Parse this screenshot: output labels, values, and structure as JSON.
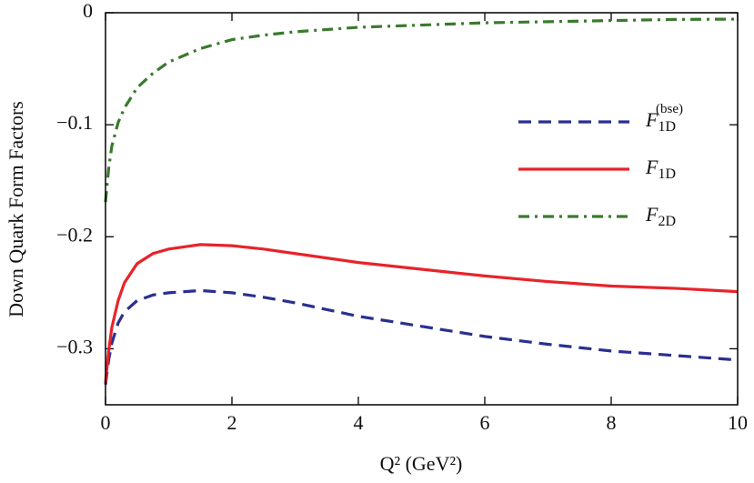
{
  "chart_data": {
    "type": "line",
    "xlabel": "Q² (GeV²)",
    "ylabel": "Down Quark Form Factors",
    "x": [
      0,
      0.05,
      0.1,
      0.2,
      0.3,
      0.5,
      0.75,
      1,
      1.5,
      2,
      2.5,
      3,
      4,
      5,
      6,
      7,
      8,
      9,
      10
    ],
    "series": [
      {
        "name": "F1D(bse)",
        "color": "#2b2f8f",
        "linestyle": "dashed",
        "values": [
          -0.332,
          -0.31,
          -0.295,
          -0.277,
          -0.267,
          -0.257,
          -0.252,
          -0.25,
          -0.248,
          -0.25,
          -0.254,
          -0.259,
          -0.271,
          -0.28,
          -0.289,
          -0.296,
          -0.302,
          -0.306,
          -0.31
        ]
      },
      {
        "name": "F1D",
        "color": "#e8232a",
        "linestyle": "solid",
        "values": [
          -0.33,
          -0.302,
          -0.281,
          -0.257,
          -0.241,
          -0.224,
          -0.215,
          -0.211,
          -0.207,
          -0.208,
          -0.211,
          -0.215,
          -0.223,
          -0.229,
          -0.235,
          -0.24,
          -0.244,
          -0.246,
          -0.249
        ]
      },
      {
        "name": "F2D",
        "color": "#3a7a2e",
        "linestyle": "dashdot",
        "values": [
          -0.169,
          -0.139,
          -0.119,
          -0.098,
          -0.085,
          -0.067,
          -0.054,
          -0.044,
          -0.032,
          -0.024,
          -0.02,
          -0.017,
          -0.013,
          -0.011,
          -0.009,
          -0.008,
          -0.007,
          -0.006,
          -0.0057
        ]
      }
    ],
    "xlim": [
      0,
      10
    ],
    "xticks": [
      0,
      2,
      4,
      6,
      8,
      10
    ],
    "ylim": [
      -0.35,
      0
    ],
    "yticks": [
      0,
      {
        "value": -0.1,
        "label": "−0.1"
      },
      {
        "value": -0.2,
        "label": "−0.2"
      },
      {
        "value": -0.3,
        "label": "−0.3"
      }
    ]
  }
}
